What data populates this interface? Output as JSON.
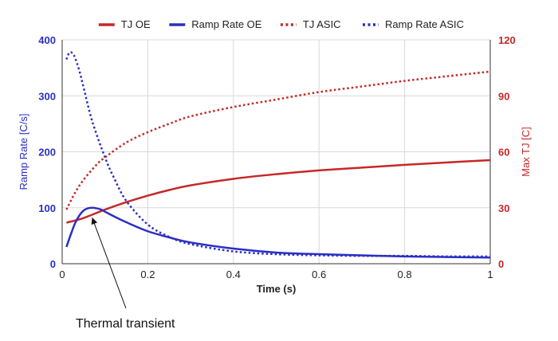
{
  "chart_data": {
    "type": "line",
    "x_axis": {
      "label": "Time (s)",
      "range": [
        0,
        1
      ],
      "ticks": [
        0,
        0.2,
        0.4,
        0.6,
        0.8,
        1
      ],
      "tick_labels": [
        "0",
        "0.2",
        "0.4",
        "0.6",
        "0.8",
        "1"
      ]
    },
    "y_left": {
      "label": "Ramp Rate [C/s]",
      "range": [
        0,
        400
      ],
      "ticks": [
        0,
        100,
        200,
        300,
        400
      ],
      "tick_labels": [
        "0",
        "100",
        "200",
        "300",
        "400"
      ],
      "color": "#2a2fc2"
    },
    "y_right": {
      "label": "Max TJ [C]",
      "range": [
        0,
        120
      ],
      "ticks": [
        0,
        30,
        60,
        90,
        120
      ],
      "tick_labels": [
        "0",
        "30",
        "60",
        "90",
        "120"
      ],
      "color": "#c62828"
    },
    "grid": true,
    "legend_position": "top-center",
    "series": [
      {
        "name": "TJ OE",
        "axis": "right",
        "style": "solid",
        "color": "#c62828",
        "x": [
          0.01,
          0.05,
          0.1,
          0.15,
          0.2,
          0.25,
          0.3,
          0.4,
          0.5,
          0.6,
          0.7,
          0.8,
          0.9,
          1.0
        ],
        "y": [
          22,
          24.5,
          29,
          33,
          36.5,
          39.5,
          42,
          45.5,
          48,
          50,
          51.5,
          53,
          54.3,
          55.5
        ]
      },
      {
        "name": "Ramp Rate OE",
        "axis": "left",
        "style": "solid",
        "color": "#2a2fc2",
        "x": [
          0.01,
          0.02,
          0.03,
          0.04,
          0.05,
          0.06,
          0.07,
          0.08,
          0.09,
          0.1,
          0.12,
          0.15,
          0.2,
          0.25,
          0.3,
          0.4,
          0.5,
          0.6,
          0.7,
          0.8,
          0.9,
          1.0
        ],
        "y": [
          30,
          52,
          72,
          86,
          95,
          99,
          100,
          99,
          97,
          93,
          85,
          74,
          58,
          47,
          38,
          27,
          20,
          17,
          15,
          13,
          12,
          11
        ]
      },
      {
        "name": "TJ ASIC",
        "axis": "right",
        "style": "dotted",
        "color": "#c62828",
        "x": [
          0.01,
          0.03,
          0.05,
          0.08,
          0.1,
          0.15,
          0.2,
          0.25,
          0.3,
          0.4,
          0.5,
          0.6,
          0.7,
          0.8,
          0.9,
          1.0
        ],
        "y": [
          29,
          38,
          45,
          53,
          57,
          65,
          70.5,
          75,
          79,
          84,
          88,
          92,
          95,
          98,
          100.5,
          103
        ]
      },
      {
        "name": "Ramp Rate ASIC",
        "axis": "left",
        "style": "dotted",
        "color": "#2a2fc2",
        "x": [
          0.01,
          0.015,
          0.02,
          0.025,
          0.03,
          0.04,
          0.05,
          0.07,
          0.1,
          0.12,
          0.15,
          0.2,
          0.25,
          0.3,
          0.4,
          0.5,
          0.6,
          0.7,
          0.8,
          0.9,
          1.0
        ],
        "y": [
          365,
          375,
          378,
          375,
          368,
          345,
          315,
          255,
          190,
          155,
          112,
          70,
          48,
          35,
          22,
          17,
          15,
          14,
          14,
          13,
          13
        ]
      }
    ],
    "annotations": [
      {
        "text": "Thermal transient",
        "x": 0.07,
        "y_left": 88
      }
    ]
  }
}
